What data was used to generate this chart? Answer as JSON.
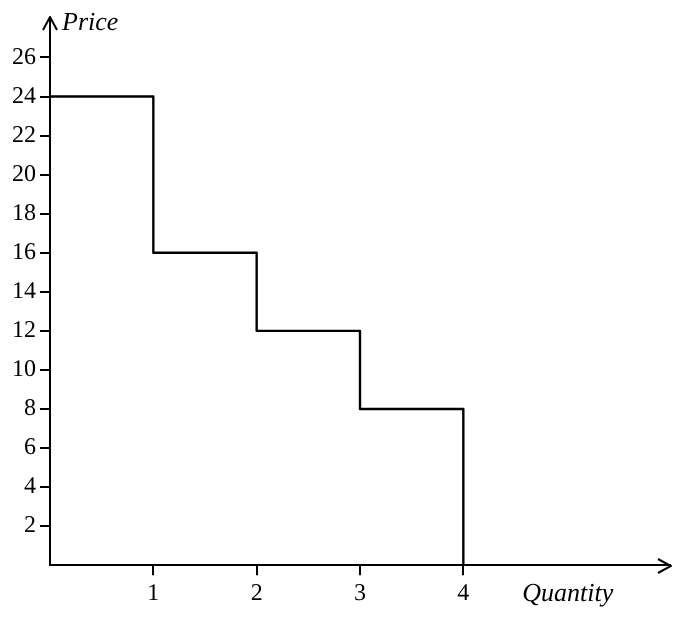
{
  "chart_data": {
    "type": "step",
    "xlabel": "Quantity",
    "ylabel": "Price",
    "x": [
      0,
      1,
      2,
      3,
      4
    ],
    "series": [
      {
        "color": "#000000",
        "values": [
          24,
          16,
          12,
          8,
          0
        ]
      }
    ],
    "xlim": [
      0,
      6
    ],
    "xticks": [
      1,
      2,
      3,
      4
    ],
    "ylim": [
      0,
      28
    ],
    "yticks": [
      2,
      4,
      6,
      8,
      10,
      12,
      14,
      16,
      18,
      20,
      22,
      24,
      26
    ],
    "grid": false,
    "legend": false,
    "marker": "none",
    "line_style": "solid"
  }
}
